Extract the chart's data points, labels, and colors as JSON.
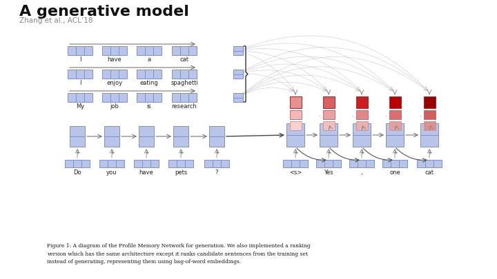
{
  "title": "A generative model",
  "subtitle": "Zhang et al., ACL’18",
  "bg_color": "#ffffff",
  "blue_light": "#b8c4e8",
  "blue_edge": "#8090c8",
  "red_colors": [
    "#e89090",
    "#d96060",
    "#cc2020",
    "#bb0000",
    "#990000"
  ],
  "pink1_colors": [
    "#f0b8b8",
    "#e8a0a0",
    "#e08888",
    "#d87070",
    "#d06060"
  ],
  "pink2_colors": [
    "#f8d0d0",
    "#f0c0c0",
    "#e8b0b0",
    "#e0a0a0",
    "#d89090"
  ],
  "figure_caption": "Figure 1: A diagram of the Profile Memory Network for generation. We also implemented a ranking\nversion which has the same architecture except it ranks candidate sentences from the training set\ninstead of generating, representing them using bag-of-word embeddings.",
  "sent_labels": [
    [
      "I",
      "have",
      "a",
      "cat"
    ],
    [
      "I",
      "enjoy",
      "eating",
      "spaghetti"
    ],
    [
      "My",
      "job",
      "is",
      "research"
    ]
  ],
  "query_words": [
    "Do",
    "you",
    "have",
    "pets",
    "?"
  ],
  "decoder_words": [
    "<s>",
    "Yes",
    ",",
    "one",
    "cat"
  ]
}
